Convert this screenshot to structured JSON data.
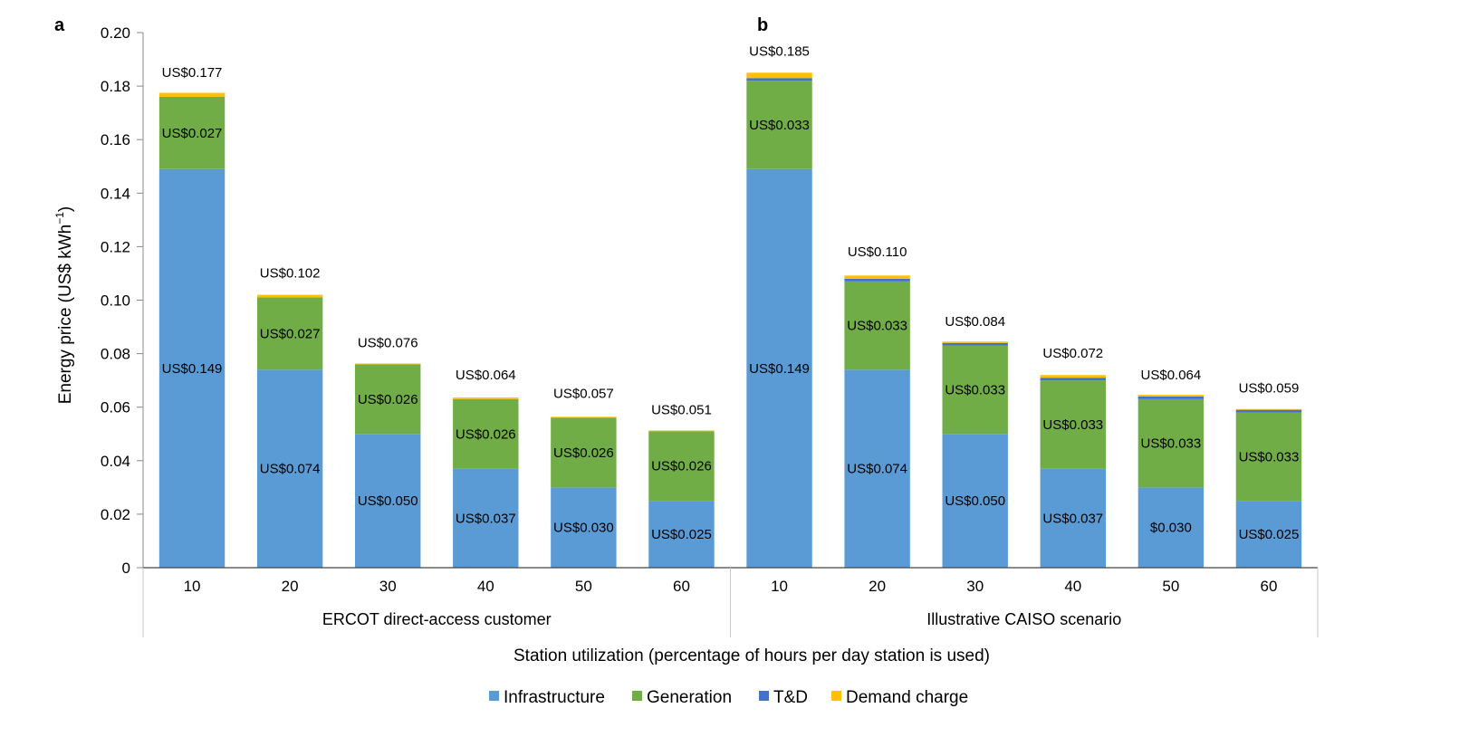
{
  "chart_data": {
    "type": "bar",
    "stacked": true,
    "panel_labels": [
      "a",
      "b"
    ],
    "ylabel": "Energy price (US$ kWh",
    "ylabel_superscript": "−1",
    "ylabel_suffix": ")",
    "xlabel": "Station utilization (percentage of hours per day station is used)",
    "ylim": [
      0,
      0.2
    ],
    "yticks": [
      "0",
      "0.02",
      "0.04",
      "0.06",
      "0.08",
      "0.10",
      "0.12",
      "0.14",
      "0.16",
      "0.18",
      "0.20"
    ],
    "colors": {
      "Infrastructure": "#5b9bd5",
      "Generation": "#70ad47",
      "T&D": "#4472c4",
      "Demand charge": "#ffc000"
    },
    "legend": {
      "placement": "bottom",
      "entries": [
        "Infrastructure",
        "Generation",
        "T&D",
        "Demand charge"
      ]
    },
    "groups": [
      {
        "name": "ERCOT direct-access customer",
        "categories": [
          "10",
          "20",
          "30",
          "40",
          "50",
          "60"
        ],
        "series": [
          {
            "name": "Infrastructure",
            "values": [
              0.149,
              0.074,
              0.05,
              0.037,
              0.03,
              0.025
            ],
            "labels": [
              "US$0.149",
              "US$0.074",
              "US$0.050",
              "US$0.037",
              "US$0.030",
              "US$0.025"
            ]
          },
          {
            "name": "Generation",
            "values": [
              0.027,
              0.027,
              0.026,
              0.026,
              0.026,
              0.026
            ],
            "labels": [
              "US$0.027",
              "US$0.027",
              "US$0.026",
              "US$0.026",
              "US$0.026",
              "US$0.026"
            ]
          },
          {
            "name": "T&D",
            "values": [
              0,
              0,
              0,
              0,
              0,
              0
            ]
          },
          {
            "name": "Demand charge",
            "values": [
              0.0015,
              0.001,
              0.0003,
              0.0006,
              0.0004,
              0.0003
            ]
          }
        ],
        "totals": [
          "US$0.177",
          "US$0.102",
          "US$0.076",
          "US$0.064",
          "US$0.057",
          "US$0.051"
        ],
        "total_values": [
          0.177,
          0.102,
          0.076,
          0.064,
          0.057,
          0.051
        ]
      },
      {
        "name": "Illustrative CAISO scenario",
        "categories": [
          "10",
          "20",
          "30",
          "40",
          "50",
          "60"
        ],
        "series": [
          {
            "name": "Infrastructure",
            "values": [
              0.149,
              0.074,
              0.05,
              0.037,
              0.03,
              0.025
            ],
            "labels": [
              "US$0.149",
              "US$0.074",
              "US$0.050",
              "US$0.037",
              "$0.030",
              "US$0.025"
            ]
          },
          {
            "name": "Generation",
            "values": [
              0.033,
              0.033,
              0.033,
              0.033,
              0.033,
              0.033
            ],
            "labels": [
              "US$0.033",
              "US$0.033",
              "US$0.033",
              "US$0.033",
              "US$0.033",
              "US$0.033"
            ]
          },
          {
            "name": "T&D",
            "values": [
              0.001,
              0.001,
              0.001,
              0.001,
              0.001,
              0.001
            ]
          },
          {
            "name": "Demand charge",
            "values": [
              0.002,
              0.0012,
              0.0005,
              0.001,
              0.0006,
              0.0003
            ]
          }
        ],
        "totals": [
          "US$0.185",
          "US$0.110",
          "US$0.084",
          "US$0.072",
          "US$0.064",
          "US$0.059"
        ],
        "total_values": [
          0.185,
          0.11,
          0.084,
          0.072,
          0.064,
          0.059
        ]
      }
    ]
  }
}
